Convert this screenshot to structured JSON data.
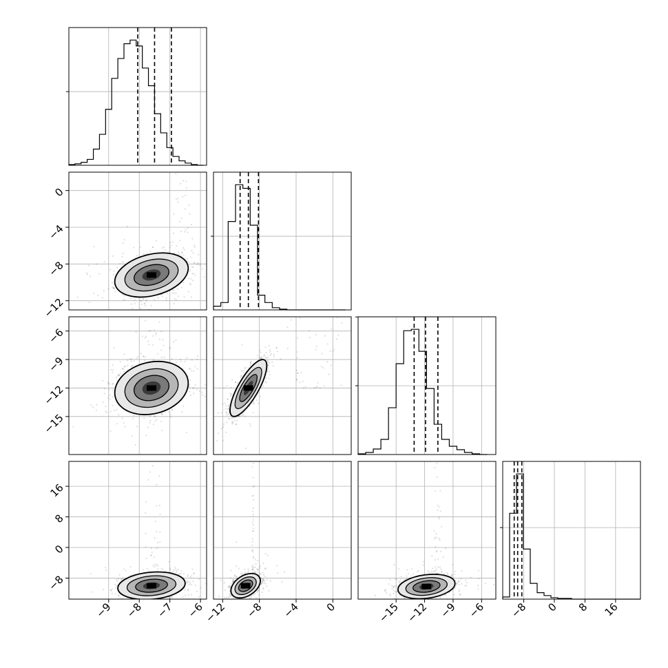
{
  "chart_data": {
    "type": "corner",
    "grid": true,
    "variables": [
      {
        "range": [
          -10.3,
          -5.8
        ],
        "ticks": [
          -9,
          -8,
          -7,
          -6
        ],
        "quantiles": [
          -8.05,
          -7.5,
          -6.95
        ]
      },
      {
        "range": [
          -13.0,
          2.0
        ],
        "ticks": [
          -12,
          -8,
          -4,
          0
        ],
        "quantiles": [
          -10.1,
          -9.2,
          -8.1
        ]
      },
      {
        "range": [
          -19.0,
          -4.5
        ],
        "ticks": [
          -15,
          -12,
          -9,
          -6
        ],
        "quantiles": [
          -13.1,
          -11.9,
          -10.6
        ]
      },
      {
        "range": [
          -13.5,
          22.5
        ],
        "ticks": [
          -8,
          0,
          8,
          16
        ],
        "quantiles": [
          -10.5,
          -9.6,
          -8.5
        ]
      }
    ],
    "histograms": [
      {
        "row": 0,
        "bin_edges": [
          -10.3,
          -10.1,
          -9.9,
          -9.7,
          -9.5,
          -9.3,
          -9.1,
          -8.9,
          -8.7,
          -8.5,
          -8.3,
          -8.1,
          -7.9,
          -7.7,
          -7.5,
          -7.3,
          -7.1,
          -6.9,
          -6.7,
          -6.5,
          -6.3,
          -6.1,
          -5.9
        ],
        "counts": [
          1,
          2,
          4,
          8,
          22,
          42,
          76,
          118,
          145,
          165,
          170,
          162,
          132,
          108,
          70,
          44,
          24,
          12,
          6,
          3,
          1,
          0
        ]
      },
      {
        "row": 1,
        "bin_edges": [
          -13.0,
          -12.2,
          -11.4,
          -10.6,
          -9.8,
          -9.0,
          -8.2,
          -7.4,
          -6.6,
          -5.8,
          -5.0,
          -4.2,
          -3.4,
          -2.6,
          -1.8,
          -1.0,
          -0.2,
          0.6,
          1.4
        ],
        "counts": [
          5,
          10,
          120,
          170,
          165,
          115,
          20,
          10,
          3,
          1,
          0,
          0,
          0,
          0,
          0,
          0,
          0,
          0
        ]
      },
      {
        "row": 2,
        "bin_edges": [
          -19.0,
          -18.2,
          -17.4,
          -16.6,
          -15.8,
          -15.0,
          -14.2,
          -13.4,
          -12.6,
          -11.8,
          -11.0,
          -10.2,
          -9.4,
          -8.6,
          -7.8,
          -7.0,
          -6.2,
          -5.4
        ],
        "counts": [
          1,
          3,
          8,
          22,
          68,
          132,
          180,
          182,
          150,
          96,
          44,
          22,
          12,
          7,
          3,
          1,
          0
        ]
      },
      {
        "row": 3,
        "bin_edges": [
          -13.5,
          -11.7,
          -9.9,
          -8.1,
          -6.3,
          -4.5,
          -2.7,
          -0.9,
          0.9,
          2.7,
          4.5,
          6.3,
          8.1,
          9.9,
          11.7,
          13.3,
          15.3,
          17.1,
          18.9,
          20.7,
          22.5
        ],
        "counts": [
          3,
          120,
          175,
          70,
          22,
          9,
          5,
          2,
          1,
          1,
          0,
          0,
          0,
          0,
          0,
          0,
          0,
          0,
          0,
          0
        ]
      }
    ],
    "pairs": [
      {
        "row": 1,
        "col": 0,
        "mean": [
          -7.6,
          -9.2
        ],
        "sd": [
          0.6,
          1.2
        ],
        "corr": 0.3,
        "outlier_x": [
          -6.2,
          -6.9
        ]
      },
      {
        "row": 2,
        "col": 0,
        "mean": [
          -7.6,
          -12.0
        ],
        "sd": [
          0.6,
          1.4
        ],
        "corr": 0.18,
        "outlier_x": [
          -7.2,
          -7.9
        ]
      },
      {
        "row": 2,
        "col": 1,
        "mean": [
          -9.2,
          -12.0
        ],
        "sd": [
          1.0,
          1.5
        ],
        "corr": 0.78,
        "outlier_x": [
          -4.0,
          1.0
        ]
      },
      {
        "row": 3,
        "col": 0,
        "mean": [
          -7.6,
          -10.0
        ],
        "sd": [
          0.55,
          1.8
        ],
        "corr": 0.18,
        "outlier_x": [
          -7.3,
          -7.8
        ]
      },
      {
        "row": 3,
        "col": 1,
        "mean": [
          -9.5,
          -10.0
        ],
        "sd": [
          0.8,
          1.6
        ],
        "corr": 0.4,
        "outlier_x": [
          -8.8,
          -8.6
        ]
      },
      {
        "row": 3,
        "col": 2,
        "mean": [
          -11.8,
          -10.2
        ],
        "sd": [
          1.5,
          1.6
        ],
        "corr": 0.25,
        "outlier_x": [
          -11.0,
          -10.2
        ]
      }
    ]
  }
}
